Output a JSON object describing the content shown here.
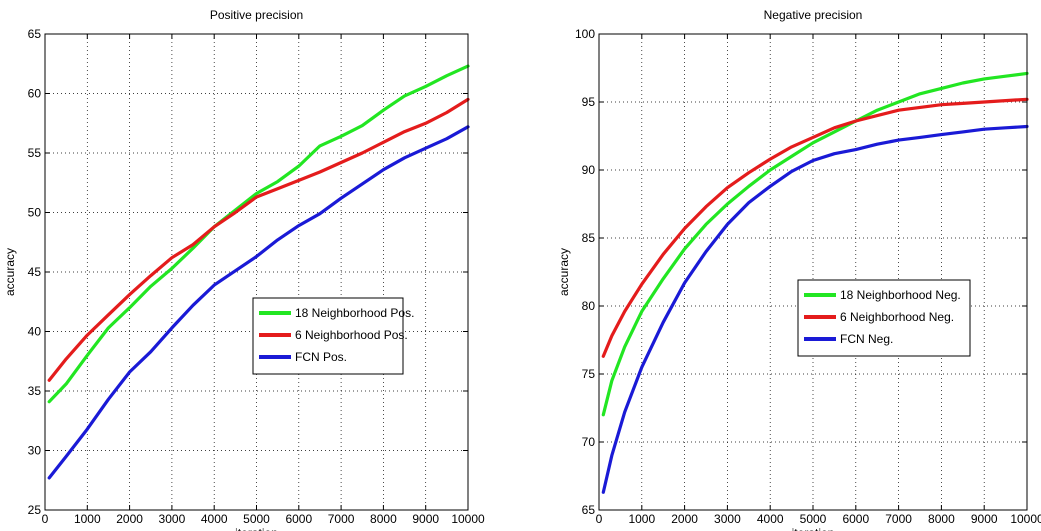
{
  "chart_data": [
    {
      "type": "line",
      "title": "Positive precision",
      "xlabel": "iteration",
      "ylabel": "accuracy",
      "xlim": [
        0,
        10000
      ],
      "ylim": [
        25,
        65
      ],
      "xticks": [
        0,
        1000,
        2000,
        3000,
        4000,
        5000,
        6000,
        7000,
        8000,
        9000,
        10000
      ],
      "yticks": [
        25,
        30,
        35,
        40,
        45,
        50,
        55,
        60,
        65
      ],
      "grid": true,
      "legend_position": "lower-right",
      "series": [
        {
          "name": "18 Neighborhood Pos.",
          "color": "#22e622",
          "x": [
            100,
            500,
            1000,
            1500,
            2000,
            2500,
            3000,
            3500,
            4000,
            4500,
            5000,
            5500,
            6000,
            6500,
            7000,
            7500,
            8000,
            8500,
            9000,
            9500,
            10000
          ],
          "y": [
            34.1,
            35.6,
            38.0,
            40.3,
            42.0,
            43.8,
            45.3,
            47.0,
            48.8,
            50.2,
            51.6,
            52.6,
            53.9,
            55.6,
            56.4,
            57.3,
            58.6,
            59.8,
            60.6,
            61.5,
            62.3
          ]
        },
        {
          "name": "6 Neighborhood Pos.",
          "color": "#e41c1c",
          "x": [
            100,
            500,
            1000,
            1500,
            2000,
            2500,
            3000,
            3500,
            4000,
            4500,
            5000,
            5500,
            6000,
            6500,
            7000,
            7500,
            8000,
            8500,
            9000,
            9500,
            10000
          ],
          "y": [
            35.9,
            37.7,
            39.7,
            41.4,
            43.1,
            44.7,
            46.2,
            47.3,
            48.8,
            50.0,
            51.3,
            52.0,
            52.7,
            53.4,
            54.2,
            55.0,
            55.9,
            56.8,
            57.5,
            58.4,
            59.5
          ]
        },
        {
          "name": "FCN Pos.",
          "color": "#1a1ad6",
          "x": [
            100,
            500,
            1000,
            1500,
            2000,
            2500,
            3000,
            3500,
            4000,
            4500,
            5000,
            5500,
            6000,
            6500,
            7000,
            7500,
            8000,
            8500,
            9000,
            9500,
            10000
          ],
          "y": [
            27.7,
            29.5,
            31.8,
            34.3,
            36.6,
            38.3,
            40.3,
            42.2,
            43.9,
            45.1,
            46.3,
            47.7,
            48.9,
            49.9,
            51.2,
            52.4,
            53.6,
            54.6,
            55.4,
            56.2,
            57.2
          ]
        }
      ]
    },
    {
      "type": "line",
      "title": "Negative precision",
      "xlabel": "iteration",
      "ylabel": "accuracy",
      "xlim": [
        0,
        10000
      ],
      "ylim": [
        65,
        100
      ],
      "xticks": [
        0,
        1000,
        2000,
        3000,
        4000,
        5000,
        6000,
        7000,
        8000,
        9000,
        10000
      ],
      "yticks": [
        65,
        70,
        75,
        80,
        85,
        90,
        95,
        100
      ],
      "grid": true,
      "legend_position": "center",
      "series": [
        {
          "name": "18 Neighborhood Neg.",
          "color": "#22e622",
          "x": [
            100,
            300,
            600,
            1000,
            1500,
            2000,
            2500,
            3000,
            3500,
            4000,
            4500,
            5000,
            5500,
            6000,
            6500,
            7000,
            7500,
            8000,
            8500,
            9000,
            9500,
            10000
          ],
          "y": [
            72.0,
            74.5,
            77.0,
            79.6,
            82.0,
            84.2,
            86.0,
            87.5,
            88.8,
            90.0,
            91.0,
            92.0,
            92.8,
            93.6,
            94.4,
            95.0,
            95.6,
            96.0,
            96.4,
            96.7,
            96.9,
            97.1
          ]
        },
        {
          "name": "6 Neighborhood Neg.",
          "color": "#e41c1c",
          "x": [
            100,
            300,
            600,
            1000,
            1500,
            2000,
            2500,
            3000,
            3500,
            4000,
            4500,
            5000,
            5500,
            6000,
            6500,
            7000,
            7500,
            8000,
            8500,
            9000,
            9500,
            10000
          ],
          "y": [
            76.3,
            77.8,
            79.6,
            81.6,
            83.8,
            85.7,
            87.3,
            88.7,
            89.8,
            90.8,
            91.7,
            92.4,
            93.1,
            93.6,
            94.0,
            94.4,
            94.6,
            94.8,
            94.9,
            95.0,
            95.1,
            95.2
          ]
        },
        {
          "name": "FCN Neg.",
          "color": "#1a1ad6",
          "x": [
            100,
            300,
            600,
            1000,
            1500,
            2000,
            2500,
            3000,
            3500,
            4000,
            4500,
            5000,
            5500,
            6000,
            6500,
            7000,
            7500,
            8000,
            8500,
            9000,
            9500,
            10000
          ],
          "y": [
            66.3,
            69.0,
            72.2,
            75.5,
            78.8,
            81.7,
            84.0,
            86.0,
            87.6,
            88.8,
            89.9,
            90.7,
            91.2,
            91.5,
            91.9,
            92.2,
            92.4,
            92.6,
            92.8,
            93.0,
            93.1,
            93.2
          ]
        }
      ]
    }
  ]
}
